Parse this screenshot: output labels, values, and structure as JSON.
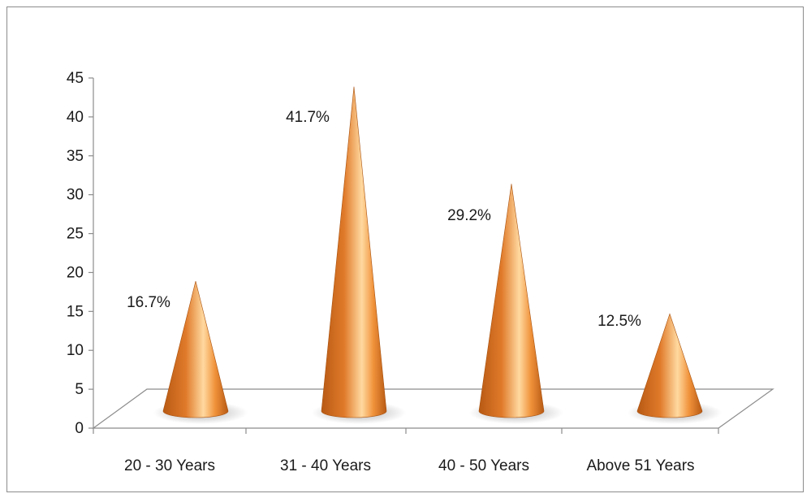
{
  "chart_data": {
    "type": "bar",
    "style": "3d-cone",
    "title": "",
    "xlabel": "",
    "ylabel": "",
    "categories": [
      "20 - 30 Years",
      "31 - 40 Years",
      "40 - 50 Years",
      "Above 51 Years"
    ],
    "values": [
      16.7,
      41.7,
      29.2,
      12.5
    ],
    "data_labels": [
      "16.7%",
      "41.7%",
      "29.2%",
      "12.5%"
    ],
    "ylim": [
      0,
      45
    ],
    "yticks": [
      "0",
      "5",
      "10",
      "15",
      "20",
      "25",
      "30",
      "35",
      "40",
      "45"
    ],
    "grid": false,
    "legend": "none",
    "colors": {
      "cone_dark": "#b85a14",
      "cone_mid": "#f0923a",
      "cone_light": "#ffd9a0",
      "axis": "#8c8c8c"
    }
  }
}
